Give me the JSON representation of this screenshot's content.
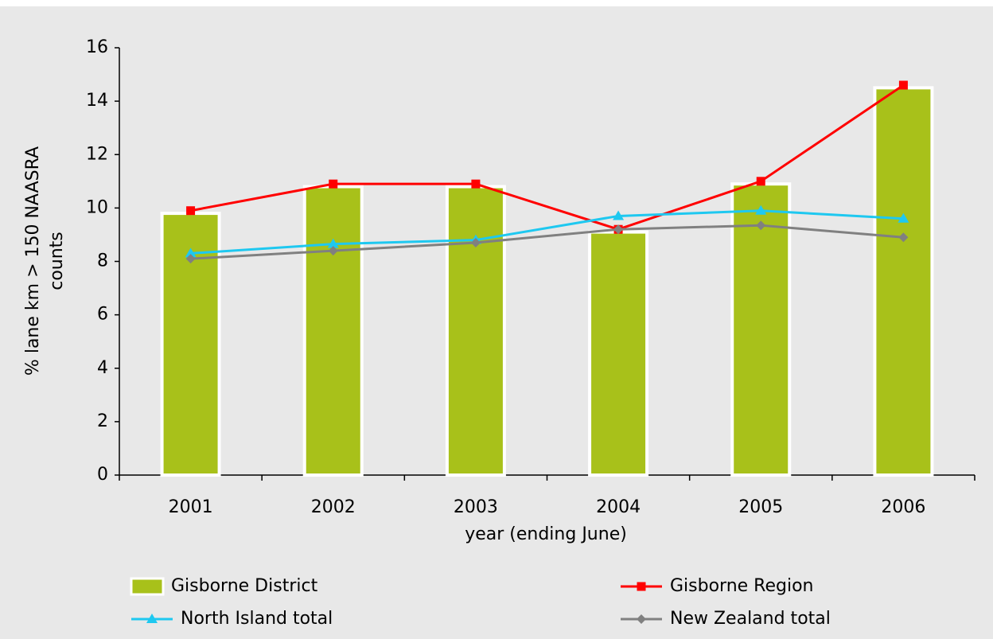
{
  "chart_data": {
    "type": "bar-line",
    "y_label": [
      "% lane km > 150 NAASRA",
      "counts"
    ],
    "x_label": "year (ending June)",
    "categories": [
      "2001",
      "2002",
      "2003",
      "2004",
      "2005",
      "2006"
    ],
    "ylim": [
      0,
      16
    ],
    "yticks": [
      0,
      2,
      4,
      6,
      8,
      10,
      12,
      14,
      16
    ],
    "series": [
      {
        "name": "Gisborne District",
        "type": "bar",
        "color": "#a8c11a",
        "values": [
          9.8,
          10.8,
          10.8,
          9.1,
          10.9,
          14.5
        ]
      },
      {
        "name": "Gisborne Region",
        "type": "line",
        "marker": "square",
        "color": "#ff0000",
        "values": [
          9.9,
          10.9,
          10.9,
          9.2,
          11.0,
          14.6
        ]
      },
      {
        "name": "North Island total",
        "type": "line",
        "marker": "triangle",
        "color": "#1ec8f0",
        "values": [
          8.3,
          8.65,
          8.8,
          9.7,
          9.9,
          9.6
        ]
      },
      {
        "name": "New Zealand total",
        "type": "line",
        "marker": "diamond",
        "color": "#808080",
        "values": [
          8.1,
          8.4,
          8.7,
          9.2,
          9.35,
          8.9
        ]
      }
    ]
  }
}
